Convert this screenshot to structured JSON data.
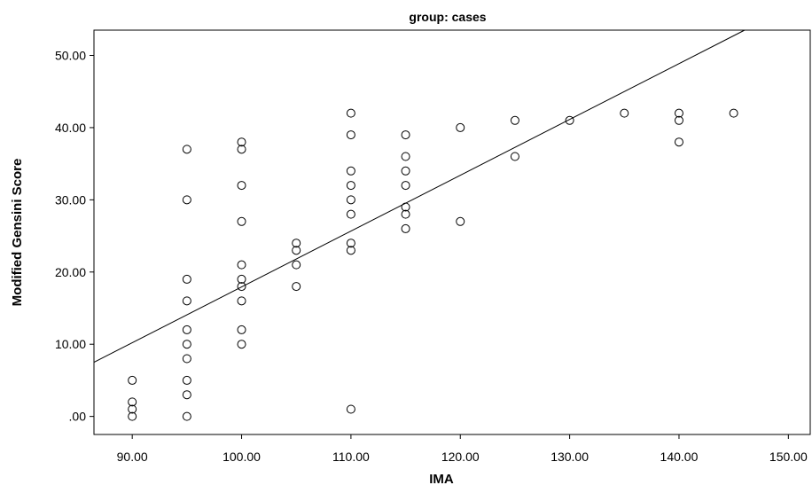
{
  "chart_data": {
    "type": "scatter",
    "title": "group: cases",
    "xlabel": "IMA",
    "ylabel": "Modified Gensini Score",
    "xlim": [
      86.5,
      152
    ],
    "ylim": [
      -2.5,
      53.5
    ],
    "xticks": [
      90,
      100,
      110,
      120,
      130,
      140,
      150
    ],
    "xtick_labels": [
      "90.00",
      "100.00",
      "110.00",
      "120.00",
      "130.00",
      "140.00",
      "150.00"
    ],
    "yticks": [
      0,
      10,
      20,
      30,
      40,
      50
    ],
    "ytick_labels": [
      ".00",
      "10.00",
      "20.00",
      "30.00",
      "40.00",
      "50.00"
    ],
    "grid": false,
    "marker": "open-circle",
    "colors": {
      "axis": "#000000",
      "marker": "#000000",
      "fit_line": "#000000"
    },
    "fit_line": {
      "x": [
        86.5,
        146
      ],
      "y": [
        7.5,
        53.5
      ]
    },
    "points": [
      {
        "x": 90,
        "y": 5
      },
      {
        "x": 90,
        "y": 2
      },
      {
        "x": 90,
        "y": 1
      },
      {
        "x": 90,
        "y": 0
      },
      {
        "x": 95,
        "y": 37
      },
      {
        "x": 95,
        "y": 30
      },
      {
        "x": 95,
        "y": 19
      },
      {
        "x": 95,
        "y": 16
      },
      {
        "x": 95,
        "y": 12
      },
      {
        "x": 95,
        "y": 10
      },
      {
        "x": 95,
        "y": 8
      },
      {
        "x": 95,
        "y": 5
      },
      {
        "x": 95,
        "y": 3
      },
      {
        "x": 95,
        "y": 0
      },
      {
        "x": 100,
        "y": 38
      },
      {
        "x": 100,
        "y": 37
      },
      {
        "x": 100,
        "y": 32
      },
      {
        "x": 100,
        "y": 27
      },
      {
        "x": 100,
        "y": 21
      },
      {
        "x": 100,
        "y": 19
      },
      {
        "x": 100,
        "y": 18
      },
      {
        "x": 100,
        "y": 16
      },
      {
        "x": 100,
        "y": 12
      },
      {
        "x": 100,
        "y": 10
      },
      {
        "x": 105,
        "y": 24
      },
      {
        "x": 105,
        "y": 23
      },
      {
        "x": 105,
        "y": 21
      },
      {
        "x": 105,
        "y": 18
      },
      {
        "x": 110,
        "y": 42
      },
      {
        "x": 110,
        "y": 39
      },
      {
        "x": 110,
        "y": 34
      },
      {
        "x": 110,
        "y": 32
      },
      {
        "x": 110,
        "y": 30
      },
      {
        "x": 110,
        "y": 28
      },
      {
        "x": 110,
        "y": 24
      },
      {
        "x": 110,
        "y": 23
      },
      {
        "x": 110,
        "y": 1
      },
      {
        "x": 115,
        "y": 39
      },
      {
        "x": 115,
        "y": 36
      },
      {
        "x": 115,
        "y": 34
      },
      {
        "x": 115,
        "y": 32
      },
      {
        "x": 115,
        "y": 29
      },
      {
        "x": 115,
        "y": 28
      },
      {
        "x": 115,
        "y": 26
      },
      {
        "x": 120,
        "y": 40
      },
      {
        "x": 120,
        "y": 27
      },
      {
        "x": 125,
        "y": 41
      },
      {
        "x": 125,
        "y": 36
      },
      {
        "x": 130,
        "y": 41
      },
      {
        "x": 135,
        "y": 42
      },
      {
        "x": 140,
        "y": 42
      },
      {
        "x": 140,
        "y": 41
      },
      {
        "x": 140,
        "y": 38
      },
      {
        "x": 145,
        "y": 42
      }
    ]
  }
}
